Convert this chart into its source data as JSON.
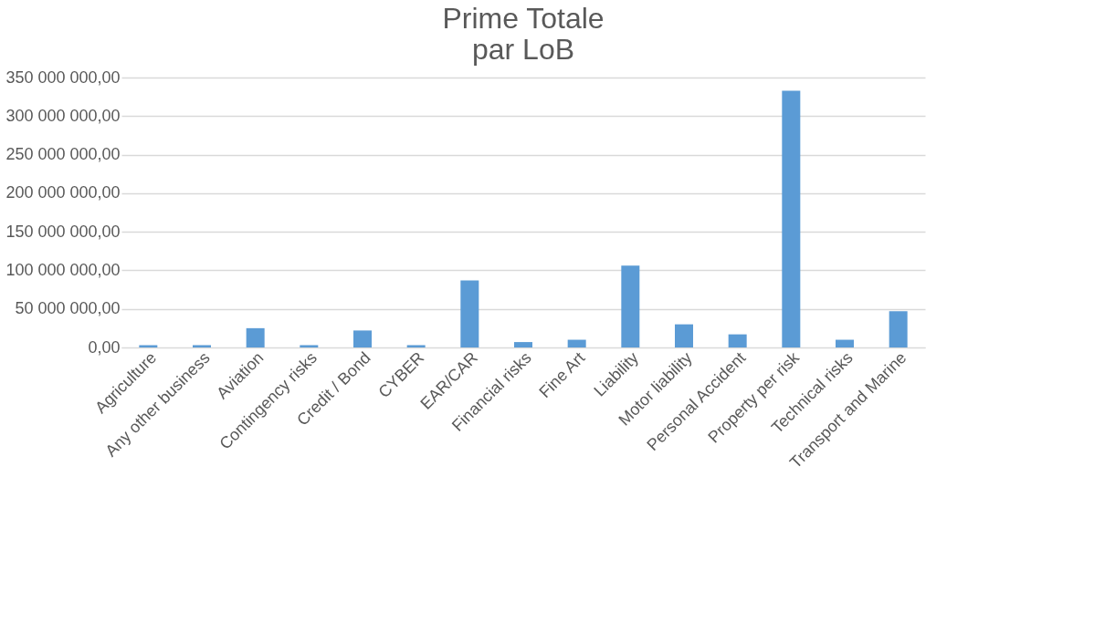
{
  "chart_data": {
    "type": "bar",
    "title": [
      "Prime Totale",
      "par LoB"
    ],
    "categories": [
      "Agriculture",
      "Any other business",
      "Aviation",
      "Contingency risks",
      "Credit / Bond",
      "CYBER",
      "EAR/CAR",
      "Financial risks",
      "Fine Art",
      "Liability",
      "Motor liability",
      "Personal Accident",
      "Property per risk",
      "Technical risks",
      "Transport and Marine"
    ],
    "values": [
      3000000,
      3000000,
      25000000,
      3000000,
      22000000,
      3000000,
      87000000,
      7000000,
      10000000,
      106000000,
      30000000,
      17000000,
      333000000,
      10000000,
      47000000
    ],
    "color": "#5b9bd5",
    "ylim": [
      0,
      350000000
    ],
    "yticks": [
      {
        "value": 0,
        "label": "0,00"
      },
      {
        "value": 50000000,
        "label": "50 000 000,00"
      },
      {
        "value": 100000000,
        "label": "100 000 000,00"
      },
      {
        "value": 150000000,
        "label": "150 000 000,00"
      },
      {
        "value": 200000000,
        "label": "200 000 000,00"
      },
      {
        "value": 250000000,
        "label": "250 000 000,00"
      },
      {
        "value": 300000000,
        "label": "300 000 000,00"
      },
      {
        "value": 350000000,
        "label": "350 000 000,00"
      }
    ],
    "grid": "y"
  }
}
